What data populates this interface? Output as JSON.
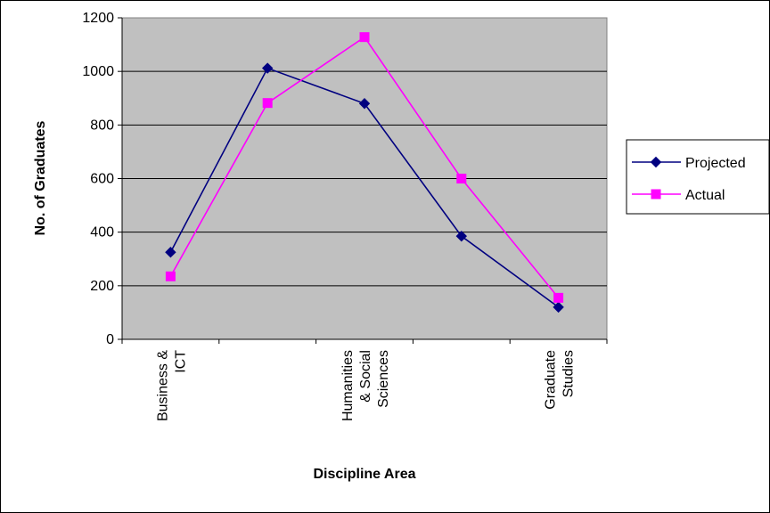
{
  "chart_data": {
    "type": "line",
    "title": "",
    "xlabel": "Discipline Area",
    "ylabel": "No. of Graduates",
    "ylim": [
      0,
      1200
    ],
    "yticks": [
      0,
      200,
      400,
      600,
      800,
      1000,
      1200
    ],
    "grid": true,
    "legend": "right",
    "plot_background": "#c0c0c0",
    "categories": [
      "Business & ICT",
      "",
      "Humanities & Social Sciences",
      "",
      "Graduate Studies"
    ],
    "category_label_lines": [
      [
        "Business &",
        "ICT"
      ],
      [],
      [
        "Humanities",
        "& Social",
        "Sciences"
      ],
      [],
      [
        "Graduate",
        "Studies"
      ]
    ],
    "series": [
      {
        "name": "Projected",
        "values": [
          325,
          1012,
          880,
          385,
          120
        ],
        "color": "#000080",
        "marker": "diamond"
      },
      {
        "name": "Actual",
        "values": [
          235,
          882,
          1128,
          600,
          155
        ],
        "color": "#ff00ff",
        "marker": "square"
      }
    ]
  }
}
